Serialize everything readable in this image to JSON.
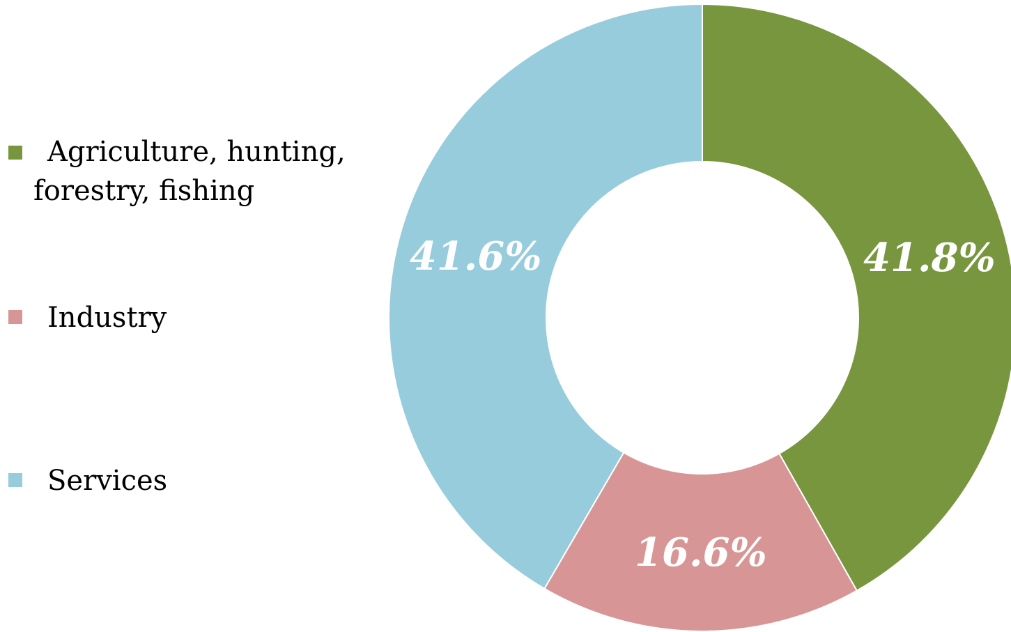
{
  "chart_data": {
    "type": "pie",
    "variant": "doughnut",
    "legend_position": "left",
    "categories": [
      "Agriculture, hunting, forestry, fishing",
      "Industry",
      "Services"
    ],
    "values": [
      41.8,
      16.6,
      41.6
    ],
    "data_labels": [
      "41.8%",
      "16.6%",
      "41.6%"
    ],
    "colors": [
      "#77963E",
      "#D89595",
      "#96CCDC"
    ]
  },
  "legend": {
    "items": [
      {
        "label": "Agriculture, hunting,\nforestry, fishing"
      },
      {
        "label": "Industry"
      },
      {
        "label": "Services"
      }
    ]
  }
}
